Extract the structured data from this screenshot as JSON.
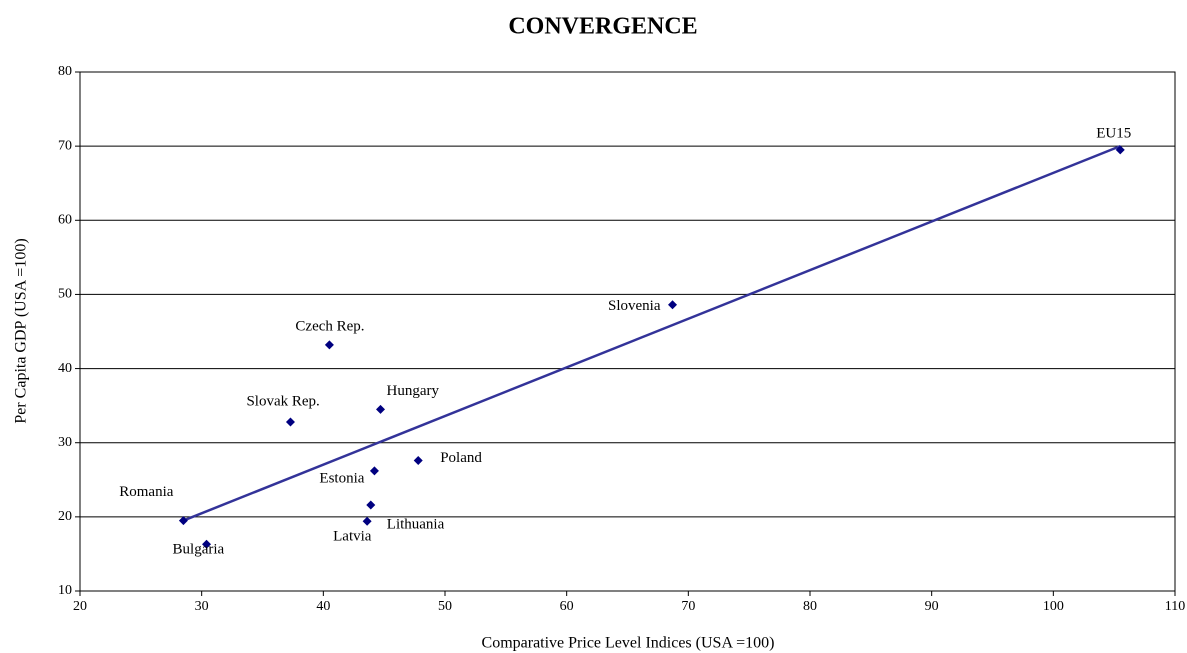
{
  "chart_data": {
    "type": "scatter",
    "title": "CONVERGENCE",
    "x_label": "Comparative Price Level Indices (USA =100)",
    "y_label": "Per Capita GDP (USA =100)",
    "labels": [
      "EU15",
      "Slovenia",
      "Czech Rep.",
      "Slovak Rep.",
      "Hungary",
      "Poland",
      "Estonia",
      "Lithuania",
      "Latvia",
      "Romania",
      "Bulgaria"
    ],
    "x": [
      105.5,
      68.7,
      40.5,
      37.3,
      44.7,
      47.8,
      44.2,
      43.9,
      43.6,
      28.5,
      30.4
    ],
    "values": [
      69.5,
      48.6,
      43.2,
      32.8,
      34.5,
      27.6,
      26.2,
      21.6,
      19.4,
      19.5,
      16.3
    ],
    "color": "#000080",
    "trend_line": {
      "x": [
        28.5,
        105.5
      ],
      "y": [
        19.5,
        70
      ],
      "color": "#333399"
    },
    "xlim": [
      20,
      110
    ],
    "xticks": [
      20,
      30,
      40,
      50,
      60,
      70,
      80,
      90,
      100,
      110
    ],
    "ylim": [
      10,
      80
    ],
    "yticks": [
      10,
      20,
      30,
      40,
      50,
      60,
      70,
      80
    ],
    "grid": true
  }
}
